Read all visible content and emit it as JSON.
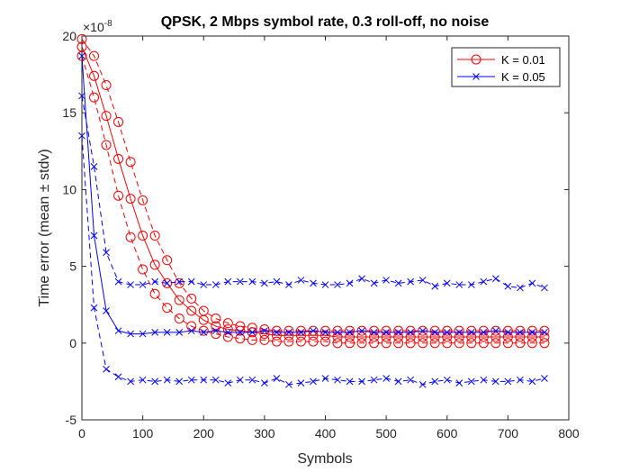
{
  "chart_data": {
    "type": "line",
    "title": "QPSK, 2 Mbps symbol rate, 0.3 roll-off, no noise",
    "xlabel": "Symbols",
    "ylabel": "Time error (mean ± stdv)",
    "y_exponent_base": "×10",
    "y_exponent_power": "-8",
    "xlim": [
      0,
      800
    ],
    "ylim": [
      -5,
      20
    ],
    "xticks": [
      0,
      100,
      200,
      300,
      400,
      500,
      600,
      700,
      800
    ],
    "yticks": [
      -5,
      0,
      5,
      10,
      15,
      20
    ],
    "xtick_labels": [
      "0",
      "100",
      "200",
      "300",
      "400",
      "500",
      "600",
      "700",
      "800"
    ],
    "ytick_labels": [
      "-5",
      "0",
      "5",
      "10",
      "15",
      "20"
    ],
    "grid": false,
    "legend_position": "top-right",
    "x": [
      0,
      20,
      40,
      60,
      80,
      100,
      120,
      140,
      160,
      180,
      200,
      220,
      240,
      260,
      280,
      300,
      320,
      340,
      360,
      380,
      400,
      420,
      440,
      460,
      480,
      500,
      520,
      540,
      560,
      580,
      600,
      620,
      640,
      660,
      680,
      700,
      720,
      740,
      760
    ],
    "series": [
      {
        "name": "K = 0.01",
        "color": "#ff0000",
        "marker": "circle",
        "mean": [
          19.3,
          17.4,
          14.8,
          12.0,
          9.4,
          7.0,
          5.1,
          3.9,
          2.8,
          2.1,
          1.5,
          1.1,
          0.9,
          0.8,
          0.7,
          0.6,
          0.5,
          0.5,
          0.5,
          0.5,
          0.5,
          0.4,
          0.4,
          0.4,
          0.4,
          0.4,
          0.4,
          0.4,
          0.4,
          0.4,
          0.4,
          0.4,
          0.4,
          0.4,
          0.4,
          0.4,
          0.4,
          0.4,
          0.4
        ],
        "upper": [
          19.8,
          18.7,
          16.8,
          14.4,
          11.8,
          9.3,
          7.0,
          5.4,
          3.9,
          2.9,
          2.1,
          1.6,
          1.3,
          1.1,
          1.0,
          0.9,
          0.8,
          0.8,
          0.8,
          0.8,
          0.8,
          0.8,
          0.8,
          0.8,
          0.8,
          0.8,
          0.8,
          0.8,
          0.8,
          0.8,
          0.8,
          0.8,
          0.8,
          0.8,
          0.8,
          0.8,
          0.8,
          0.8,
          0.8
        ],
        "lower": [
          18.7,
          16.0,
          12.9,
          9.6,
          6.9,
          4.8,
          3.2,
          2.3,
          1.6,
          1.1,
          0.8,
          0.6,
          0.4,
          0.3,
          0.2,
          0.2,
          0.1,
          0.1,
          0.1,
          0.1,
          0.1,
          0.0,
          0.0,
          0.0,
          0.0,
          0.0,
          0.0,
          0.0,
          0.0,
          0.0,
          0.0,
          0.0,
          0.0,
          0.0,
          0.0,
          0.0,
          0.0,
          0.0,
          0.0
        ]
      },
      {
        "name": "K = 0.05",
        "color": "#0000ff",
        "marker": "x",
        "mean": [
          18.7,
          7.0,
          2.1,
          0.8,
          0.6,
          0.6,
          0.7,
          0.7,
          0.7,
          0.8,
          0.7,
          0.8,
          0.7,
          0.7,
          0.7,
          0.8,
          0.7,
          0.7,
          0.7,
          0.8,
          0.7,
          0.7,
          0.7,
          0.8,
          0.7,
          0.7,
          0.7,
          0.7,
          0.8,
          0.7,
          0.7,
          0.7,
          0.7,
          0.7,
          0.8,
          0.7,
          0.7,
          0.7,
          0.7
        ],
        "upper": [
          16.1,
          11.5,
          5.9,
          4.0,
          3.8,
          3.8,
          4.0,
          3.9,
          4.0,
          4.0,
          3.8,
          3.8,
          4.0,
          4.0,
          4.0,
          3.9,
          4.0,
          3.8,
          4.1,
          3.9,
          3.8,
          3.8,
          3.9,
          4.2,
          3.9,
          4.1,
          3.9,
          4.0,
          4.1,
          3.7,
          3.9,
          3.8,
          3.8,
          4.0,
          4.2,
          3.7,
          3.6,
          3.9,
          3.6
        ],
        "lower": [
          13.5,
          2.3,
          -1.7,
          -2.2,
          -2.5,
          -2.4,
          -2.5,
          -2.4,
          -2.5,
          -2.4,
          -2.4,
          -2.4,
          -2.6,
          -2.4,
          -2.4,
          -2.6,
          -2.3,
          -2.7,
          -2.6,
          -2.5,
          -2.3,
          -2.4,
          -2.5,
          -2.5,
          -2.4,
          -2.3,
          -2.5,
          -2.4,
          -2.7,
          -2.5,
          -2.4,
          -2.6,
          -2.5,
          -2.4,
          -2.5,
          -2.5,
          -2.4,
          -2.5,
          -2.3
        ]
      }
    ]
  }
}
